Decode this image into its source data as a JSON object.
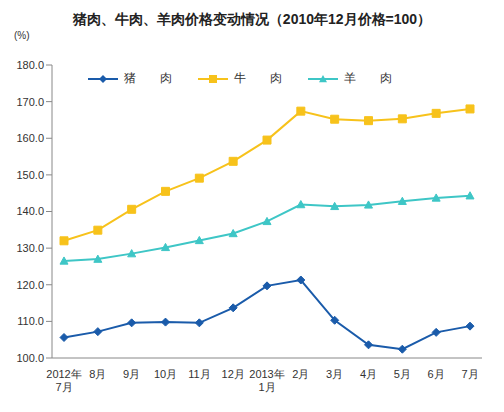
{
  "chart_data": {
    "type": "line",
    "title": "猪肉、牛肉、羊肉价格变动情况（2010年12月价格=100）",
    "y_label": "(%)",
    "categories": [
      "2012年\n7月",
      "8月",
      "9月",
      "10月",
      "11月",
      "12月",
      "2013年\n1月",
      "2月",
      "3月",
      "4月",
      "5月",
      "6月",
      "7月"
    ],
    "series": [
      {
        "name": "猪　　肉",
        "color": "#1A5BAA",
        "marker": "diamond",
        "values": [
          105.6,
          107.2,
          109.6,
          109.8,
          109.6,
          113.7,
          119.7,
          121.3,
          110.3,
          103.6,
          102.4,
          107.0,
          108.7
        ]
      },
      {
        "name": "牛　　肉",
        "color": "#F7C21B",
        "marker": "square",
        "values": [
          132.0,
          134.9,
          140.6,
          145.5,
          149.1,
          153.7,
          159.5,
          167.4,
          165.2,
          164.8,
          165.3,
          166.8,
          168.0
        ]
      },
      {
        "name": "羊　　肉",
        "color": "#3EC6C6",
        "marker": "triangle",
        "values": [
          126.5,
          127.0,
          128.5,
          130.2,
          132.1,
          134.0,
          137.3,
          141.9,
          141.4,
          141.8,
          142.8,
          143.7,
          144.3
        ]
      }
    ],
    "ylim": [
      100,
      180
    ],
    "yticks": [
      {
        "value": 100,
        "label": "100.0"
      },
      {
        "value": 110,
        "label": "110.0"
      },
      {
        "value": 120,
        "label": "120.0"
      },
      {
        "value": 130,
        "label": "130.0"
      },
      {
        "value": 140,
        "label": "140.0"
      },
      {
        "value": 150,
        "label": "150.0"
      },
      {
        "value": 160,
        "label": "160.0"
      },
      {
        "value": 170,
        "label": "170.0"
      },
      {
        "value": 180,
        "label": "180.0"
      }
    ],
    "grid": false,
    "legend": "top"
  }
}
